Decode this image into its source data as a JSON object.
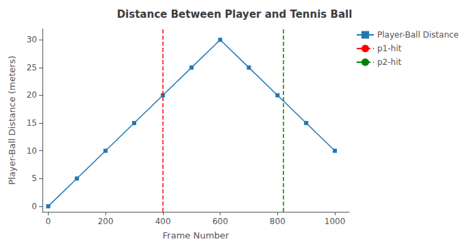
{
  "chart_data": {
    "type": "line",
    "title": "Distance Between Player and Tennis Ball",
    "xlabel": "Frame Number",
    "ylabel": "Player-Ball Distance (meters)",
    "x": [
      0,
      100,
      200,
      300,
      400,
      500,
      600,
      700,
      800,
      900,
      1000
    ],
    "series": [
      {
        "name": "Player-Ball Distance",
        "type": "line",
        "color": "#1f77b4",
        "marker": "square",
        "values": [
          0,
          5,
          10,
          15,
          20,
          25,
          30,
          25,
          20,
          15,
          10
        ]
      },
      {
        "name": "p1-hit",
        "type": "vline",
        "x": 400,
        "color": "red",
        "line_style": "dashed"
      },
      {
        "name": "p2-hit",
        "type": "vline",
        "x": 820,
        "color": "green",
        "line_style": "dashed"
      }
    ],
    "xlim": [
      -20,
      1050
    ],
    "ylim": [
      -1,
      32
    ],
    "xticks": [
      0,
      200,
      400,
      600,
      800,
      1000
    ],
    "yticks": [
      0,
      5,
      10,
      15,
      20,
      25,
      30
    ],
    "grid": false,
    "legend": "upper right"
  }
}
